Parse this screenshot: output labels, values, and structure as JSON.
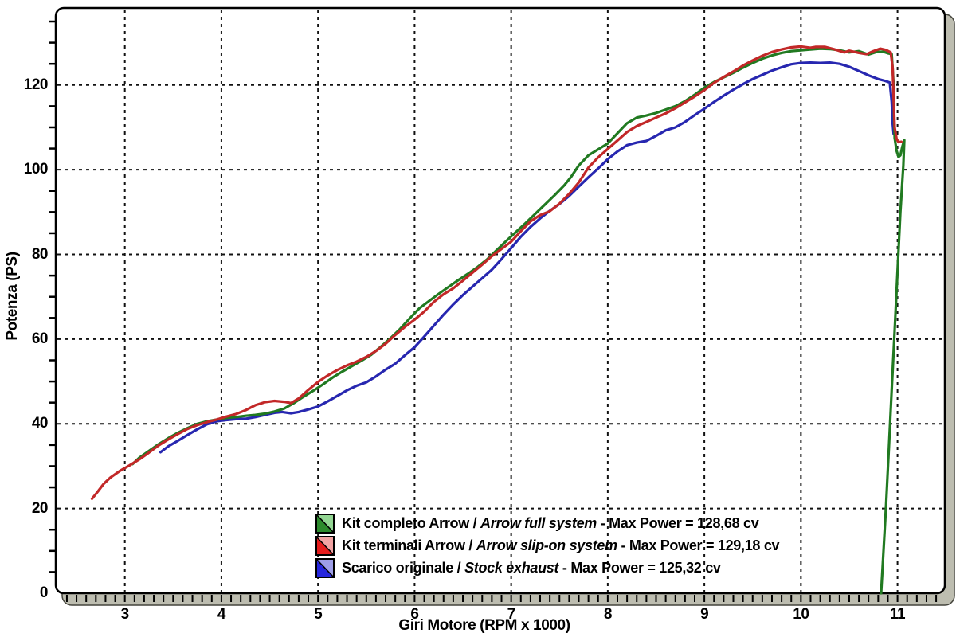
{
  "page": {
    "background": "#ffffff"
  },
  "chart_data": {
    "type": "line",
    "title": "",
    "xlabel": "Giri Motore (RPM x 1000)",
    "ylabel": "Potenza (PS)",
    "xlim": [
      2.285,
      11.49
    ],
    "ylim": [
      0,
      138.2
    ],
    "x_major_ticks": [
      3,
      4,
      5,
      6,
      7,
      8,
      9,
      10,
      11
    ],
    "x_tick_labels": [
      "3",
      "4",
      "5",
      "6",
      "7",
      "8",
      "9",
      "10",
      "11"
    ],
    "x_minor": {
      "from": 2.4,
      "to": 11.4,
      "step": 0.1
    },
    "y_major_ticks": [
      0,
      20,
      40,
      60,
      80,
      100,
      120
    ],
    "y_tick_labels": [
      "0",
      "20",
      "40",
      "60",
      "80",
      "100",
      "120"
    ],
    "y_minor": {
      "from": 5,
      "to": 135,
      "step": 5
    },
    "grid": "dashed-black-on-white",
    "frame_color": "#000000",
    "bevel_color": "#bdbdb0",
    "legend_position": "bottom-center-inside",
    "series": [
      {
        "id": "arrow-full-system",
        "color": "#217a21",
        "legend_solid": "#2d8a2d",
        "legend_tint": "#93d693",
        "label_plain": "Kit completo Arrow /",
        "label_italic": "Arrow full system",
        "label_tail": "- Max Power = 128,68 cv",
        "max_power_cv": "128,68",
        "points": [
          [
            3.08,
            30.5
          ],
          [
            3.15,
            32
          ],
          [
            3.25,
            33.6
          ],
          [
            3.35,
            35.2
          ],
          [
            3.45,
            36.6
          ],
          [
            3.55,
            37.9
          ],
          [
            3.65,
            39
          ],
          [
            3.75,
            40
          ],
          [
            3.85,
            40.6
          ],
          [
            3.95,
            41
          ],
          [
            4.05,
            41.4
          ],
          [
            4.15,
            41.6
          ],
          [
            4.25,
            41.9
          ],
          [
            4.35,
            42.1
          ],
          [
            4.45,
            42.4
          ],
          [
            4.55,
            42.9
          ],
          [
            4.65,
            43.6
          ],
          [
            4.75,
            44.9
          ],
          [
            4.85,
            46.4
          ],
          [
            4.95,
            47.8
          ],
          [
            5.05,
            49.3
          ],
          [
            5.15,
            50.9
          ],
          [
            5.25,
            52.3
          ],
          [
            5.35,
            53.6
          ],
          [
            5.45,
            54.9
          ],
          [
            5.55,
            56.3
          ],
          [
            5.65,
            58.2
          ],
          [
            5.75,
            60.2
          ],
          [
            5.85,
            62.4
          ],
          [
            5.95,
            64.9
          ],
          [
            6.05,
            67.3
          ],
          [
            6.15,
            69
          ],
          [
            6.25,
            70.7
          ],
          [
            6.35,
            72.3
          ],
          [
            6.45,
            73.9
          ],
          [
            6.55,
            75.4
          ],
          [
            6.65,
            77
          ],
          [
            6.75,
            78.8
          ],
          [
            6.85,
            81
          ],
          [
            6.95,
            83.2
          ],
          [
            7.05,
            85.3
          ],
          [
            7.15,
            87.4
          ],
          [
            7.25,
            89.6
          ],
          [
            7.35,
            91.8
          ],
          [
            7.45,
            94
          ],
          [
            7.55,
            96.3
          ],
          [
            7.62,
            98.3
          ],
          [
            7.7,
            101
          ],
          [
            7.8,
            103.4
          ],
          [
            7.9,
            104.8
          ],
          [
            8.0,
            106.2
          ],
          [
            8.1,
            108.6
          ],
          [
            8.2,
            111
          ],
          [
            8.3,
            112.3
          ],
          [
            8.4,
            112.8
          ],
          [
            8.5,
            113.4
          ],
          [
            8.6,
            114.2
          ],
          [
            8.7,
            115
          ],
          [
            8.8,
            116.2
          ],
          [
            8.9,
            117.7
          ],
          [
            9.0,
            119.4
          ],
          [
            9.1,
            120.7
          ],
          [
            9.2,
            121.8
          ],
          [
            9.3,
            122.9
          ],
          [
            9.4,
            124.1
          ],
          [
            9.5,
            125.2
          ],
          [
            9.6,
            126.2
          ],
          [
            9.7,
            127
          ],
          [
            9.8,
            127.6
          ],
          [
            9.9,
            128
          ],
          [
            10.0,
            128.2
          ],
          [
            10.1,
            128.4
          ],
          [
            10.2,
            128.6
          ],
          [
            10.3,
            128.5
          ],
          [
            10.4,
            128.2
          ],
          [
            10.5,
            127.7
          ],
          [
            10.6,
            128
          ],
          [
            10.65,
            127.6
          ],
          [
            10.7,
            127.2
          ],
          [
            10.78,
            127.8
          ],
          [
            10.85,
            127.9
          ],
          [
            10.9,
            127.5
          ],
          [
            10.94,
            127.3
          ],
          [
            10.96,
            120
          ],
          [
            10.965,
            112
          ],
          [
            10.97,
            107.5
          ],
          [
            10.99,
            104.5
          ],
          [
            11.01,
            103
          ],
          [
            11.03,
            103.4
          ],
          [
            11.05,
            105.5
          ],
          [
            11.07,
            107
          ],
          [
            11.06,
            101
          ],
          [
            11.03,
            90
          ],
          [
            11.0,
            76
          ],
          [
            10.97,
            62
          ],
          [
            10.94,
            48
          ],
          [
            10.91,
            34
          ],
          [
            10.88,
            20
          ],
          [
            10.85,
            8
          ],
          [
            10.83,
            0
          ]
        ]
      },
      {
        "id": "arrow-slip-on-system",
        "color": "#c22828",
        "legend_solid": "#e51c1c",
        "legend_tint": "#f2a3a3",
        "label_plain": "Kit terminali Arrow /",
        "label_italic": "Arrow slip-on system",
        "label_tail": "- Max Power = 129,18 cv",
        "max_power_cv": "129,18",
        "points": [
          [
            2.66,
            22.3
          ],
          [
            2.72,
            24
          ],
          [
            2.78,
            25.8
          ],
          [
            2.85,
            27.3
          ],
          [
            2.95,
            28.9
          ],
          [
            3.05,
            30.2
          ],
          [
            3.15,
            31.6
          ],
          [
            3.25,
            33.2
          ],
          [
            3.35,
            34.9
          ],
          [
            3.45,
            36.3
          ],
          [
            3.55,
            37.6
          ],
          [
            3.65,
            38.8
          ],
          [
            3.75,
            39.7
          ],
          [
            3.85,
            40.4
          ],
          [
            3.95,
            41
          ],
          [
            4.05,
            41.7
          ],
          [
            4.15,
            42.3
          ],
          [
            4.25,
            43.2
          ],
          [
            4.35,
            44.4
          ],
          [
            4.45,
            45.1
          ],
          [
            4.55,
            45.4
          ],
          [
            4.65,
            45.2
          ],
          [
            4.72,
            44.9
          ],
          [
            4.8,
            46
          ],
          [
            4.9,
            48
          ],
          [
            5.0,
            49.9
          ],
          [
            5.1,
            51.4
          ],
          [
            5.2,
            52.7
          ],
          [
            5.3,
            53.8
          ],
          [
            5.4,
            54.7
          ],
          [
            5.5,
            55.8
          ],
          [
            5.6,
            57.2
          ],
          [
            5.7,
            58.9
          ],
          [
            5.8,
            61
          ],
          [
            5.9,
            62.9
          ],
          [
            6.0,
            64.6
          ],
          [
            6.1,
            66.5
          ],
          [
            6.2,
            68.8
          ],
          [
            6.3,
            70.6
          ],
          [
            6.4,
            72
          ],
          [
            6.5,
            73.8
          ],
          [
            6.6,
            75.7
          ],
          [
            6.7,
            77.6
          ],
          [
            6.8,
            79.6
          ],
          [
            6.9,
            81.3
          ],
          [
            7.0,
            83
          ],
          [
            7.1,
            85.5
          ],
          [
            7.2,
            87.8
          ],
          [
            7.3,
            89.3
          ],
          [
            7.4,
            90.2
          ],
          [
            7.5,
            92
          ],
          [
            7.6,
            94.3
          ],
          [
            7.7,
            97
          ],
          [
            7.8,
            100.5
          ],
          [
            7.9,
            102.9
          ],
          [
            8.0,
            104.9
          ],
          [
            8.1,
            106.9
          ],
          [
            8.2,
            108.9
          ],
          [
            8.3,
            110.3
          ],
          [
            8.4,
            111.3
          ],
          [
            8.5,
            112.3
          ],
          [
            8.6,
            113.3
          ],
          [
            8.7,
            114.5
          ],
          [
            8.8,
            115.9
          ],
          [
            8.9,
            117.3
          ],
          [
            9.0,
            118.8
          ],
          [
            9.1,
            120.5
          ],
          [
            9.2,
            121.9
          ],
          [
            9.3,
            123.2
          ],
          [
            9.4,
            124.6
          ],
          [
            9.5,
            125.8
          ],
          [
            9.6,
            126.9
          ],
          [
            9.7,
            127.8
          ],
          [
            9.8,
            128.4
          ],
          [
            9.9,
            128.9
          ],
          [
            10.0,
            129.1
          ],
          [
            10.1,
            128.8
          ],
          [
            10.15,
            129
          ],
          [
            10.25,
            129
          ],
          [
            10.35,
            128.4
          ],
          [
            10.45,
            127.7
          ],
          [
            10.5,
            128.1
          ],
          [
            10.6,
            127.6
          ],
          [
            10.68,
            127.3
          ],
          [
            10.75,
            128
          ],
          [
            10.82,
            128.6
          ],
          [
            10.88,
            128.3
          ],
          [
            10.93,
            127.7
          ],
          [
            10.95,
            124
          ],
          [
            10.96,
            117
          ],
          [
            10.97,
            110
          ],
          [
            10.99,
            107.3
          ],
          [
            11.01,
            106.5
          ],
          [
            11.04,
            106.6
          ]
        ]
      },
      {
        "id": "stock-exhaust",
        "color": "#2727b0",
        "legend_solid": "#2626dd",
        "legend_tint": "#9e9ee8",
        "label_plain": "Scarico originale /",
        "label_italic": "Stock exhaust",
        "label_tail": "- Max Power = 125,32 cv",
        "max_power_cv": "125,32",
        "points": [
          [
            3.37,
            33.3
          ],
          [
            3.45,
            34.7
          ],
          [
            3.55,
            36
          ],
          [
            3.65,
            37.4
          ],
          [
            3.75,
            38.7
          ],
          [
            3.85,
            39.9
          ],
          [
            3.95,
            40.6
          ],
          [
            4.05,
            40.9
          ],
          [
            4.15,
            41.1
          ],
          [
            4.25,
            41.2
          ],
          [
            4.35,
            41.6
          ],
          [
            4.45,
            42.1
          ],
          [
            4.55,
            42.6
          ],
          [
            4.63,
            42.8
          ],
          [
            4.72,
            42.5
          ],
          [
            4.8,
            42.8
          ],
          [
            4.9,
            43.4
          ],
          [
            5.0,
            44.1
          ],
          [
            5.1,
            45.3
          ],
          [
            5.2,
            46.6
          ],
          [
            5.3,
            47.9
          ],
          [
            5.4,
            49
          ],
          [
            5.5,
            49.8
          ],
          [
            5.6,
            51.2
          ],
          [
            5.7,
            52.8
          ],
          [
            5.8,
            54.2
          ],
          [
            5.9,
            56.2
          ],
          [
            6.0,
            58.1
          ],
          [
            6.1,
            60.6
          ],
          [
            6.2,
            63.2
          ],
          [
            6.3,
            65.8
          ],
          [
            6.4,
            68.2
          ],
          [
            6.5,
            70.4
          ],
          [
            6.6,
            72.4
          ],
          [
            6.7,
            74.4
          ],
          [
            6.8,
            76.4
          ],
          [
            6.9,
            78.9
          ],
          [
            7.0,
            81.5
          ],
          [
            7.1,
            84.2
          ],
          [
            7.2,
            86.5
          ],
          [
            7.3,
            88.5
          ],
          [
            7.4,
            90.3
          ],
          [
            7.5,
            91.9
          ],
          [
            7.6,
            93.8
          ],
          [
            7.7,
            96
          ],
          [
            7.8,
            98.2
          ],
          [
            7.9,
            100.3
          ],
          [
            8.0,
            102.5
          ],
          [
            8.1,
            104.3
          ],
          [
            8.2,
            105.8
          ],
          [
            8.3,
            106.4
          ],
          [
            8.4,
            106.8
          ],
          [
            8.5,
            108
          ],
          [
            8.6,
            109.3
          ],
          [
            8.7,
            110
          ],
          [
            8.8,
            111.3
          ],
          [
            8.9,
            112.9
          ],
          [
            9.0,
            114.4
          ],
          [
            9.1,
            116
          ],
          [
            9.2,
            117.5
          ],
          [
            9.3,
            118.9
          ],
          [
            9.4,
            120.2
          ],
          [
            9.5,
            121.4
          ],
          [
            9.6,
            122.4
          ],
          [
            9.7,
            123.4
          ],
          [
            9.8,
            124.2
          ],
          [
            9.9,
            124.9
          ],
          [
            10.0,
            125.2
          ],
          [
            10.1,
            125.3
          ],
          [
            10.2,
            125.2
          ],
          [
            10.3,
            125.3
          ],
          [
            10.4,
            125
          ],
          [
            10.5,
            124.3
          ],
          [
            10.6,
            123.3
          ],
          [
            10.7,
            122.3
          ],
          [
            10.8,
            121.4
          ],
          [
            10.87,
            121
          ],
          [
            10.92,
            120.6
          ],
          [
            10.94,
            116
          ],
          [
            10.95,
            111
          ],
          [
            10.96,
            108.5
          ]
        ]
      }
    ]
  }
}
